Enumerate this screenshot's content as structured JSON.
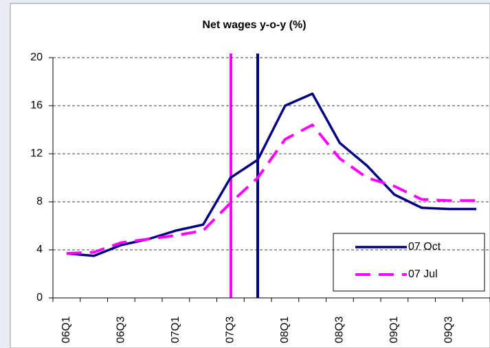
{
  "chart_data": {
    "type": "line",
    "title": "Net wages y-o-y (%)",
    "categories": [
      "06Q1",
      null,
      "06Q3",
      null,
      "07Q1",
      null,
      "07Q3",
      null,
      "08Q1",
      null,
      "08Q3",
      null,
      "09Q1",
      null,
      "09Q3",
      null
    ],
    "series": [
      {
        "name": "07 Oct",
        "color": "#000080",
        "dash": false,
        "values": [
          3.7,
          3.5,
          4.4,
          4.9,
          5.6,
          6.1,
          10.0,
          11.5,
          16.0,
          17.0,
          12.9,
          11.0,
          8.6,
          7.5,
          7.4,
          7.4
        ]
      },
      {
        "name": "07 Jul",
        "color": "#ff00ff",
        "dash": true,
        "values": [
          3.7,
          3.8,
          4.6,
          4.9,
          5.2,
          5.6,
          7.9,
          10.0,
          13.2,
          14.4,
          11.6,
          10.0,
          9.3,
          8.2,
          8.1,
          8.1
        ]
      }
    ],
    "ylim": [
      0,
      20
    ],
    "yticks": [
      0,
      4,
      8,
      12,
      16,
      20
    ],
    "grid": true
  }
}
